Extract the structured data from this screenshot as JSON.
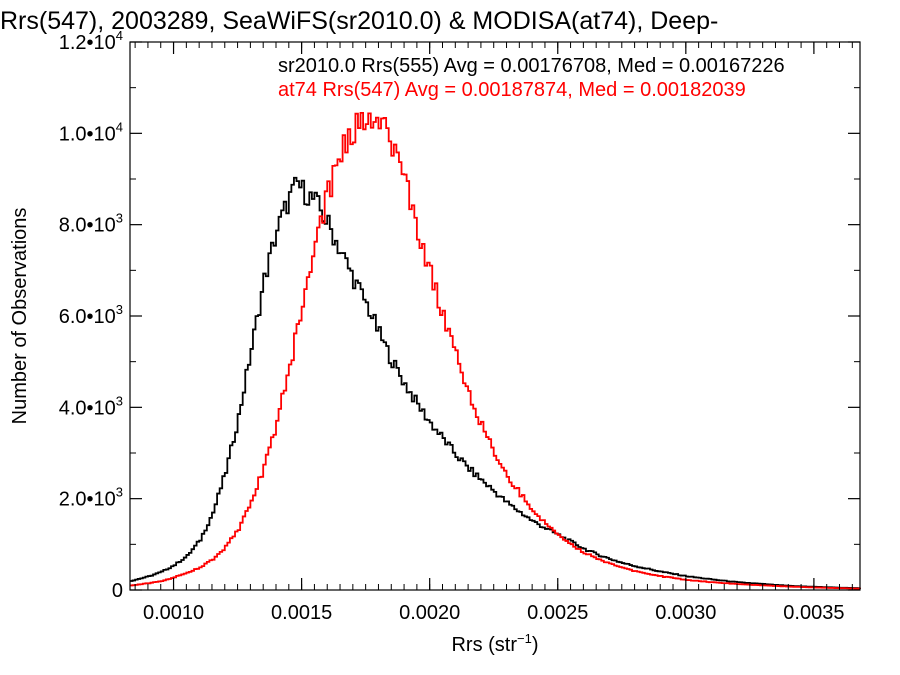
{
  "chart_data": {
    "type": "line",
    "title": "Rrs(547), 2003289, SeaWiFS(sr2010.0) & MODISA(at74), Deep-",
    "xlabel": "Rrs (str",
    "xlabel_sup": "−1",
    "xlabel_close": ")",
    "ylabel": "Number of Observations",
    "xlim": [
      0.00083,
      0.00368
    ],
    "ylim": [
      0,
      12000
    ],
    "x_ticks": [
      0.001,
      0.0015,
      0.002,
      0.0025,
      0.003,
      0.0035
    ],
    "x_tick_labels": [
      "0.0010",
      "0.0015",
      "0.0020",
      "0.0025",
      "0.0030",
      "0.0035"
    ],
    "y_ticks": [
      0,
      2000,
      4000,
      6000,
      8000,
      10000,
      12000
    ],
    "y_tick_labels": [
      {
        "mant": "0",
        "exp": ""
      },
      {
        "mant": "2.0•10",
        "exp": "3"
      },
      {
        "mant": "4.0•10",
        "exp": "3"
      },
      {
        "mant": "6.0•10",
        "exp": "3"
      },
      {
        "mant": "8.0•10",
        "exp": "3"
      },
      {
        "mant": "1.0•10",
        "exp": "4"
      },
      {
        "mant": "1.2•10",
        "exp": "4"
      }
    ],
    "grid": false,
    "legend_position": "top-right",
    "annotations": [
      {
        "text": "sr2010.0 Rrs(555) Avg = 0.00176708, Med = 0.00167226",
        "color": "#000000"
      },
      {
        "text": "at74 Rrs(547) Avg = 0.00187874, Med = 0.00182039",
        "color": "#ff0000"
      }
    ],
    "series": [
      {
        "color": "#000000",
        "points": [
          [
            0.00083,
            200
          ],
          [
            0.0009,
            300
          ],
          [
            0.00095,
            400
          ],
          [
            0.001,
            550
          ],
          [
            0.00105,
            750
          ],
          [
            0.0011,
            1100
          ],
          [
            0.00115,
            1700
          ],
          [
            0.0012,
            2600
          ],
          [
            0.00125,
            3800
          ],
          [
            0.0013,
            5300
          ],
          [
            0.00135,
            6800
          ],
          [
            0.0014,
            7900
          ],
          [
            0.00145,
            8600
          ],
          [
            0.00148,
            8900
          ],
          [
            0.0015,
            8750
          ],
          [
            0.00155,
            8500
          ],
          [
            0.0016,
            8000
          ],
          [
            0.00165,
            7400
          ],
          [
            0.0017,
            6800
          ],
          [
            0.00175,
            6250
          ],
          [
            0.0018,
            5600
          ],
          [
            0.00185,
            5000
          ],
          [
            0.0019,
            4500
          ],
          [
            0.00195,
            4050
          ],
          [
            0.002,
            3650
          ],
          [
            0.00205,
            3300
          ],
          [
            0.0021,
            2950
          ],
          [
            0.00215,
            2650
          ],
          [
            0.0022,
            2400
          ],
          [
            0.00225,
            2150
          ],
          [
            0.0023,
            1900
          ],
          [
            0.00235,
            1700
          ],
          [
            0.0024,
            1500
          ],
          [
            0.00245,
            1350
          ],
          [
            0.0025,
            1200
          ],
          [
            0.00255,
            1050
          ],
          [
            0.0026,
            900
          ],
          [
            0.00265,
            780
          ],
          [
            0.0027,
            680
          ],
          [
            0.00275,
            590
          ],
          [
            0.0028,
            520
          ],
          [
            0.00285,
            460
          ],
          [
            0.0029,
            400
          ],
          [
            0.00295,
            350
          ],
          [
            0.003,
            300
          ],
          [
            0.0031,
            230
          ],
          [
            0.0032,
            170
          ],
          [
            0.0033,
            130
          ],
          [
            0.0034,
            90
          ],
          [
            0.0035,
            70
          ],
          [
            0.0036,
            50
          ],
          [
            0.00368,
            40
          ]
        ]
      },
      {
        "color": "#ff0000",
        "points": [
          [
            0.00083,
            100
          ],
          [
            0.0009,
            150
          ],
          [
            0.00095,
            200
          ],
          [
            0.001,
            280
          ],
          [
            0.00105,
            380
          ],
          [
            0.0011,
            500
          ],
          [
            0.00115,
            680
          ],
          [
            0.0012,
            950
          ],
          [
            0.00125,
            1350
          ],
          [
            0.0013,
            1950
          ],
          [
            0.00135,
            2700
          ],
          [
            0.0014,
            3700
          ],
          [
            0.00145,
            4900
          ],
          [
            0.0015,
            6300
          ],
          [
            0.00155,
            7600
          ],
          [
            0.0016,
            8700
          ],
          [
            0.00165,
            9600
          ],
          [
            0.0017,
            10100
          ],
          [
            0.00175,
            10400
          ],
          [
            0.00178,
            10450
          ],
          [
            0.0018,
            10300
          ],
          [
            0.00185,
            9800
          ],
          [
            0.0019,
            9000
          ],
          [
            0.00195,
            7900
          ],
          [
            0.002,
            6900
          ],
          [
            0.00205,
            6000
          ],
          [
            0.0021,
            5100
          ],
          [
            0.00215,
            4300
          ],
          [
            0.0022,
            3600
          ],
          [
            0.00225,
            3000
          ],
          [
            0.0023,
            2500
          ],
          [
            0.00235,
            2100
          ],
          [
            0.0024,
            1750
          ],
          [
            0.00245,
            1450
          ],
          [
            0.0025,
            1200
          ],
          [
            0.00255,
            1000
          ],
          [
            0.0026,
            820
          ],
          [
            0.00265,
            680
          ],
          [
            0.0027,
            570
          ],
          [
            0.00275,
            480
          ],
          [
            0.0028,
            410
          ],
          [
            0.00285,
            350
          ],
          [
            0.0029,
            300
          ],
          [
            0.00295,
            260
          ],
          [
            0.003,
            220
          ],
          [
            0.0031,
            170
          ],
          [
            0.0032,
            130
          ],
          [
            0.0033,
            100
          ],
          [
            0.0034,
            75
          ],
          [
            0.0035,
            55
          ],
          [
            0.0036,
            40
          ],
          [
            0.00368,
            30
          ]
        ]
      }
    ]
  }
}
